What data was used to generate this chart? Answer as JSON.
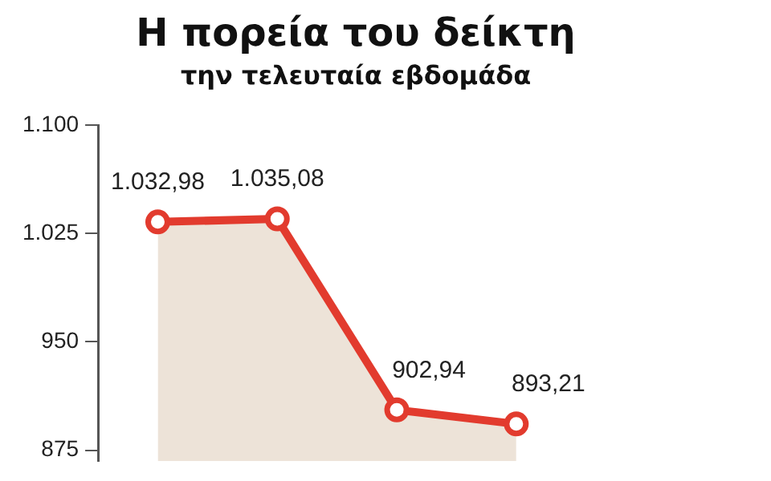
{
  "chart_data": {
    "type": "area",
    "title": "Η πορεία του δείκτη",
    "subtitle": "την τελευταία εβδομάδα",
    "categories": [
      null,
      null,
      null,
      null,
      null
    ],
    "series": [
      {
        "color": "#e23b2e",
        "values": [
          1032.98,
          1035.08,
          902.94,
          893.21,
          null
        ],
        "value_labels": [
          "1.032,98",
          "1.035,08",
          "902,94",
          "893,21",
          null
        ]
      }
    ],
    "ylim": [
      867.5,
      1100
    ],
    "yticks": [
      {
        "value": 875,
        "label": "875"
      },
      {
        "value": 950,
        "label": "950"
      },
      {
        "value": 1025,
        "label": "1.025"
      },
      {
        "value": 1100,
        "label": "1.100"
      }
    ],
    "grid": false,
    "legend": false,
    "marker": "circle",
    "line_style": "solid"
  }
}
